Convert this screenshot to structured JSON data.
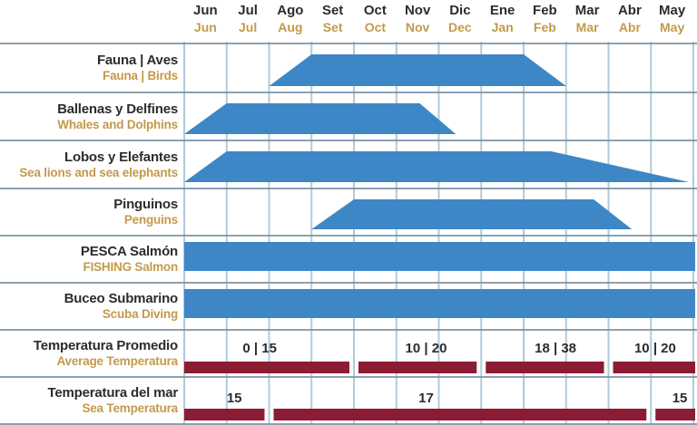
{
  "header": {
    "months_es": [
      "Jun",
      "Jul",
      "Ago",
      "Set",
      "Oct",
      "Nov",
      "Dic",
      "Ene",
      "Feb",
      "Mar",
      "Abr",
      "May"
    ],
    "months_en": [
      "Jun",
      "Jul",
      "Aug",
      "Set",
      "Oct",
      "Nov",
      "Dec",
      "Jan",
      "Feb",
      "Mar",
      "Abr",
      "May"
    ]
  },
  "colors": {
    "activity_fill": "#3d87c6",
    "temperature_fill": "#8c1c33",
    "label_primary": "#2e2c2a",
    "label_secondary": "#c29a4b",
    "grid_vertical": "#afcbdc",
    "grid_horizontal": "#7d93a2",
    "background": "#ffffff"
  },
  "chart_data": {
    "type": "bar",
    "subtype": "seasonal-availability-gantt",
    "x_axis": {
      "unit": "month",
      "order": [
        "Jun",
        "Jul",
        "Ago",
        "Set",
        "Oct",
        "Nov",
        "Dic",
        "Ene",
        "Feb",
        "Mar",
        "Abr",
        "May"
      ],
      "range_months": [
        0,
        12
      ],
      "grid": true
    },
    "legend": "none",
    "activities": [
      {
        "name_es": "Fauna | Aves",
        "name_en": "Fauna | Birds",
        "kind": "trapezoid",
        "ramp_in_start": 2,
        "full_start": 3,
        "full_end": 8,
        "ramp_out_end": 9,
        "season": "Aug–Mar, peak Sep–Jan"
      },
      {
        "name_es": "Ballenas y Delfines",
        "name_en": "Whales and Dolphins",
        "kind": "trapezoid",
        "ramp_in_start": 0,
        "full_start": 1,
        "full_end": 5.55,
        "ramp_out_end": 6.4,
        "season": "Jun–mid Dec, peak Jul–mid Nov"
      },
      {
        "name_es": "Lobos y Elefantes",
        "name_en": "Sea lions and sea elephants",
        "kind": "trapezoid",
        "ramp_in_start": 0,
        "full_start": 1,
        "full_end": 8.65,
        "ramp_out_end": 11.9,
        "season": "All year, peak Jul–Feb, tapering Mar–May"
      },
      {
        "name_es": "Pinguinos",
        "name_en": "Penguins",
        "kind": "trapezoid",
        "ramp_in_start": 3,
        "full_start": 4,
        "full_end": 9.65,
        "ramp_out_end": 10.55,
        "season": "Sep–mid Apr, peak Oct–mid Mar"
      },
      {
        "name_es": "PESCA Salmón",
        "name_en": "FISHING Salmon",
        "kind": "rect",
        "ramp_in_start": 0,
        "full_start": 0,
        "full_end": 12,
        "ramp_out_end": 12,
        "season": "All year"
      },
      {
        "name_es": "Buceo Submarino",
        "name_en": "Scuba Diving",
        "kind": "rect",
        "ramp_in_start": 0,
        "full_start": 0,
        "full_end": 12,
        "ramp_out_end": 12,
        "season": "All year"
      }
    ],
    "temperatures": [
      {
        "name_es": "Temperatura Promedio",
        "name_en": "Average Temperatura",
        "segments": [
          {
            "from": 0,
            "to": 4,
            "label": "0 | 15",
            "label_center": 1.78
          },
          {
            "from": 4,
            "to": 7,
            "label": "10 | 20",
            "label_center": 5.7
          },
          {
            "from": 7,
            "to": 10,
            "label": "18 | 38",
            "label_center": 8.75
          },
          {
            "from": 10,
            "to": 12,
            "label": "10 | 20",
            "label_center": 11.1
          }
        ]
      },
      {
        "name_es": "Temperatura del mar",
        "name_en": "Sea Temperatura",
        "segments": [
          {
            "from": 0,
            "to": 2,
            "label": "15",
            "label_center": 1.18
          },
          {
            "from": 2,
            "to": 11,
            "label": "17",
            "label_center": 5.7
          },
          {
            "from": 11,
            "to": 12,
            "label": "15",
            "label_center": 11.68
          }
        ]
      }
    ]
  }
}
